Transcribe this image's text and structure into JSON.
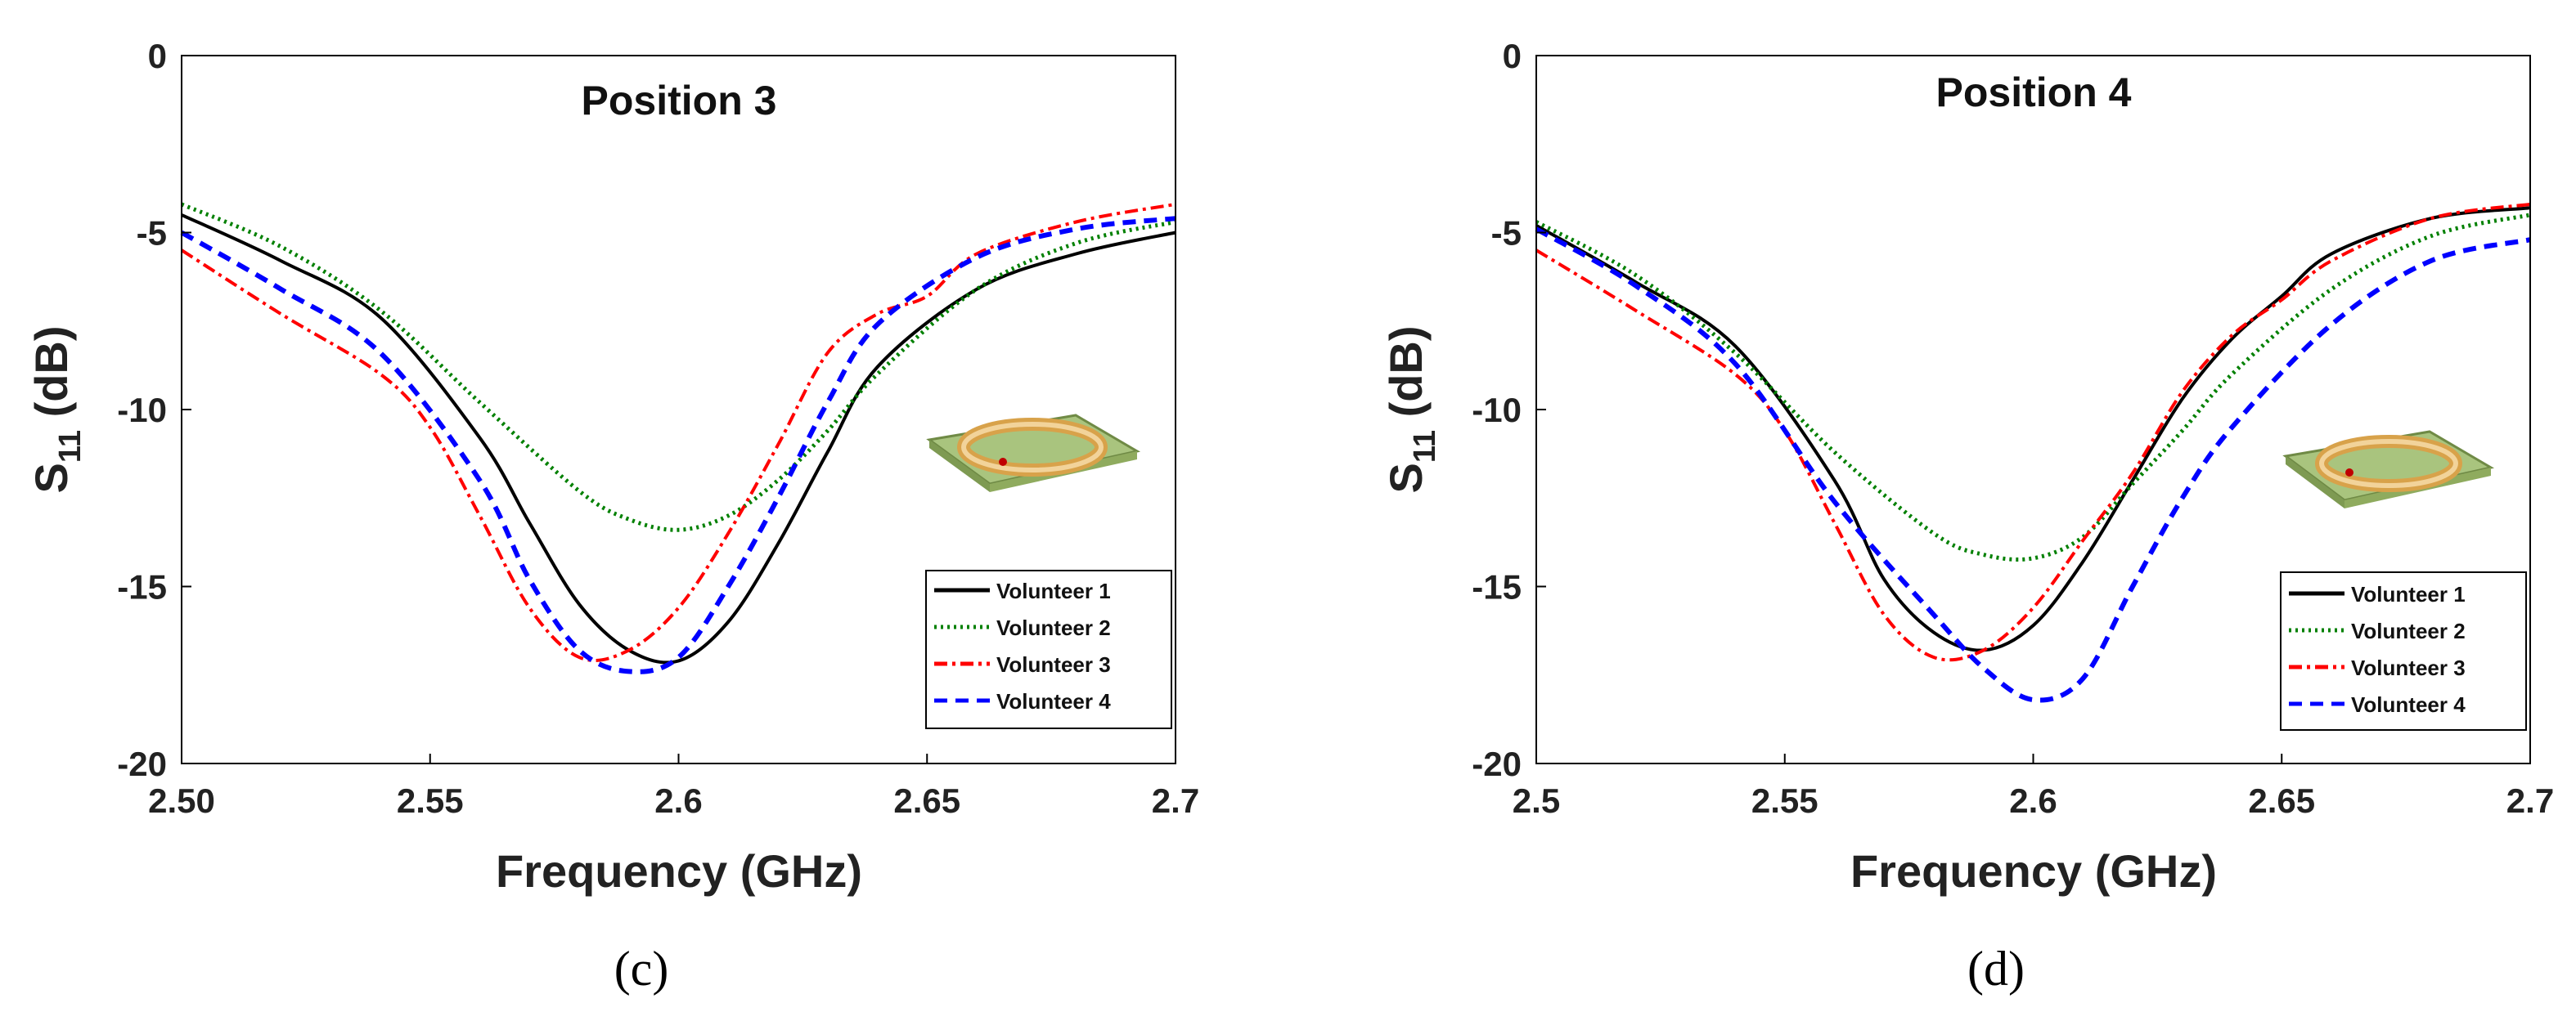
{
  "colors": {
    "v1": "#000000",
    "v2": "#008000",
    "v3": "#ff0000",
    "v4": "#0000ff"
  },
  "chart_data": [
    {
      "type": "line",
      "caption": "(c)",
      "title": "Position 3",
      "xlabel": "Frequency (GHz)",
      "ylabel_main": "S",
      "ylabel_sub": "11",
      "ylabel_unit": " (dB)",
      "xlim": [
        2.5,
        2.7
      ],
      "ylim": [
        -20,
        0
      ],
      "xticks": [
        2.5,
        2.55,
        2.6,
        2.65,
        2.7
      ],
      "xtick_labels": [
        "2.50",
        "2.55",
        "2.6",
        "2.65",
        "2.7"
      ],
      "yticks": [
        0,
        -5,
        -10,
        -15,
        -20
      ],
      "ytick_labels": [
        "0",
        "-5",
        "-10",
        "-15",
        "-20"
      ],
      "legend": [
        "Volunteer 1",
        "Volunteer 2",
        "Volunteer 3",
        "Volunteer 4"
      ],
      "series": [
        {
          "name": "Volunteer 1",
          "color": "#000000",
          "x": [
            2.5,
            2.52,
            2.54,
            2.56,
            2.57,
            2.58,
            2.59,
            2.6,
            2.61,
            2.62,
            2.63,
            2.64,
            2.66,
            2.68,
            2.7
          ],
          "y": [
            -4.5,
            -5.8,
            -7.4,
            -10.8,
            -13.2,
            -15.5,
            -16.8,
            -17.1,
            -16.0,
            -13.8,
            -11.2,
            -8.8,
            -6.6,
            -5.6,
            -5.0
          ]
        },
        {
          "name": "Volunteer 2",
          "color": "#008000",
          "x": [
            2.5,
            2.52,
            2.54,
            2.56,
            2.58,
            2.59,
            2.6,
            2.61,
            2.62,
            2.63,
            2.64,
            2.66,
            2.68,
            2.7
          ],
          "y": [
            -4.2,
            -5.4,
            -7.2,
            -9.8,
            -12.3,
            -13.1,
            -13.4,
            -13.0,
            -12.0,
            -10.6,
            -9.0,
            -6.6,
            -5.3,
            -4.7
          ]
        },
        {
          "name": "Volunteer 3",
          "color": "#ff0000",
          "x": [
            2.5,
            2.52,
            2.54,
            2.55,
            2.56,
            2.57,
            2.58,
            2.59,
            2.6,
            2.61,
            2.62,
            2.63,
            2.64,
            2.65,
            2.66,
            2.68,
            2.7
          ],
          "y": [
            -5.5,
            -7.3,
            -9.0,
            -10.5,
            -13.0,
            -15.6,
            -17.0,
            -16.8,
            -15.6,
            -13.5,
            -11.0,
            -8.4,
            -7.3,
            -6.8,
            -5.6,
            -4.7,
            -4.2
          ]
        },
        {
          "name": "Volunteer 4",
          "color": "#0000ff",
          "x": [
            2.5,
            2.52,
            2.54,
            2.56,
            2.57,
            2.58,
            2.59,
            2.6,
            2.61,
            2.62,
            2.63,
            2.64,
            2.66,
            2.68,
            2.7
          ],
          "y": [
            -5.0,
            -6.6,
            -8.4,
            -12.0,
            -14.8,
            -16.8,
            -17.4,
            -17.0,
            -15.0,
            -12.5,
            -9.8,
            -7.6,
            -5.7,
            -4.9,
            -4.6
          ]
        }
      ]
    },
    {
      "type": "line",
      "caption": "(d)",
      "title": "Position 4",
      "xlabel": "Frequency (GHz)",
      "ylabel_main": "S",
      "ylabel_sub": "11",
      "ylabel_unit": " (dB)",
      "xlim": [
        2.5,
        2.7
      ],
      "ylim": [
        -20,
        0
      ],
      "xticks": [
        2.5,
        2.55,
        2.6,
        2.65,
        2.7
      ],
      "xtick_labels": [
        "2.5",
        "2.55",
        "2.6",
        "2.65",
        "2.7"
      ],
      "yticks": [
        0,
        -5,
        -10,
        -15,
        -20
      ],
      "ytick_labels": [
        "0",
        "-5",
        "-10",
        "-15",
        "-20"
      ],
      "legend": [
        "Volunteer 1",
        "Volunteer 2",
        "Volunteer 3",
        "Volunteer 4"
      ],
      "series": [
        {
          "name": "Volunteer 1",
          "color": "#000000",
          "x": [
            2.5,
            2.52,
            2.54,
            2.56,
            2.57,
            2.58,
            2.59,
            2.6,
            2.61,
            2.62,
            2.63,
            2.64,
            2.65,
            2.66,
            2.68,
            2.7
          ],
          "y": [
            -4.8,
            -6.4,
            -8.2,
            -12.0,
            -14.8,
            -16.3,
            -16.8,
            -16.1,
            -14.3,
            -12.0,
            -9.7,
            -8.0,
            -6.8,
            -5.6,
            -4.6,
            -4.3
          ]
        },
        {
          "name": "Volunteer 2",
          "color": "#008000",
          "x": [
            2.5,
            2.52,
            2.54,
            2.56,
            2.58,
            2.59,
            2.6,
            2.61,
            2.62,
            2.63,
            2.64,
            2.66,
            2.68,
            2.7
          ],
          "y": [
            -4.7,
            -6.2,
            -8.4,
            -11.2,
            -13.5,
            -14.1,
            -14.2,
            -13.6,
            -12.1,
            -10.6,
            -9.0,
            -6.6,
            -5.1,
            -4.5
          ]
        },
        {
          "name": "Volunteer 3",
          "color": "#ff0000",
          "x": [
            2.5,
            2.52,
            2.54,
            2.55,
            2.56,
            2.57,
            2.58,
            2.59,
            2.6,
            2.61,
            2.62,
            2.63,
            2.64,
            2.65,
            2.66,
            2.68,
            2.7
          ],
          "y": [
            -5.5,
            -7.2,
            -9.0,
            -10.6,
            -13.2,
            -15.8,
            -17.0,
            -16.8,
            -15.6,
            -13.7,
            -11.8,
            -9.5,
            -7.9,
            -6.9,
            -5.8,
            -4.6,
            -4.2
          ]
        },
        {
          "name": "Volunteer 4",
          "color": "#0000ff",
          "x": [
            2.5,
            2.52,
            2.54,
            2.56,
            2.58,
            2.59,
            2.6,
            2.61,
            2.62,
            2.63,
            2.64,
            2.66,
            2.68,
            2.7
          ],
          "y": [
            -4.9,
            -6.5,
            -8.7,
            -12.6,
            -15.8,
            -17.3,
            -18.2,
            -17.6,
            -15.0,
            -12.5,
            -10.5,
            -7.6,
            -5.8,
            -5.2
          ]
        }
      ]
    }
  ]
}
